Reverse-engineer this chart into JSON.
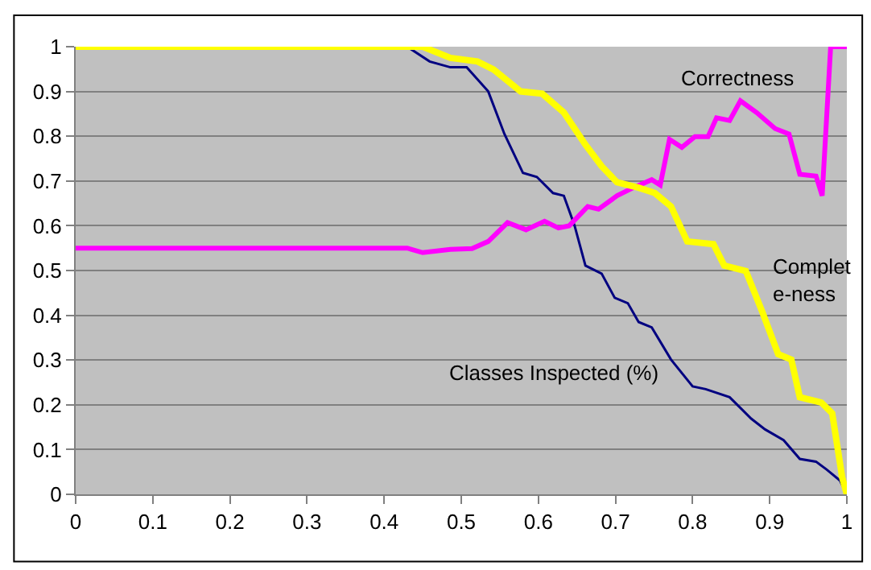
{
  "chart_data": {
    "type": "line",
    "xlim": [
      0,
      1
    ],
    "ylim": [
      0,
      1
    ],
    "xticks": [
      0,
      0.1,
      0.2,
      0.3,
      0.4,
      0.5,
      0.6,
      0.7,
      0.8,
      0.9,
      1
    ],
    "yticks": [
      0,
      0.1,
      0.2,
      0.3,
      0.4,
      0.5,
      0.6,
      0.7,
      0.8,
      0.9,
      1
    ],
    "grid": "y",
    "legend": false,
    "marker": "none",
    "line_style": "solid",
    "series": [
      {
        "name": "Classes Inspected (%)",
        "color": "#000080",
        "x": [
          0,
          0.43,
          0.459,
          0.486,
          0.507,
          0.535,
          0.556,
          0.58,
          0.598,
          0.619,
          0.633,
          0.647,
          0.661,
          0.682,
          0.699,
          0.716,
          0.73,
          0.747,
          0.772,
          0.8,
          0.817,
          0.848,
          0.876,
          0.894,
          0.918,
          0.939,
          0.96,
          0.974,
          0.991,
          1
        ],
        "values": [
          1,
          1,
          0.967,
          0.954,
          0.954,
          0.9,
          0.805,
          0.718,
          0.709,
          0.673,
          0.667,
          0.6,
          0.511,
          0.493,
          0.439,
          0.427,
          0.385,
          0.373,
          0.301,
          0.241,
          0.235,
          0.217,
          0.169,
          0.145,
          0.121,
          0.079,
          0.073,
          0.055,
          0.031,
          0
        ]
      },
      {
        "name": "Correctness",
        "color": "#ff00ff",
        "x": [
          0,
          0.43,
          0.45,
          0.486,
          0.514,
          0.535,
          0.56,
          0.584,
          0.608,
          0.626,
          0.64,
          0.664,
          0.678,
          0.702,
          0.723,
          0.747,
          0.758,
          0.77,
          0.786,
          0.803,
          0.82,
          0.831,
          0.848,
          0.862,
          0.883,
          0.907,
          0.925,
          0.939,
          0.96,
          0.968,
          0.979,
          1
        ],
        "values": [
          0.55,
          0.55,
          0.54,
          0.547,
          0.549,
          0.565,
          0.607,
          0.591,
          0.61,
          0.595,
          0.6,
          0.643,
          0.637,
          0.667,
          0.685,
          0.703,
          0.691,
          0.793,
          0.775,
          0.799,
          0.799,
          0.841,
          0.835,
          0.879,
          0.853,
          0.817,
          0.805,
          0.715,
          0.711,
          0.667,
          1,
          1
        ]
      },
      {
        "name": "Complet\ne-ness",
        "color": "#ffff00",
        "x": [
          0,
          0.45,
          0.486,
          0.521,
          0.542,
          0.577,
          0.605,
          0.633,
          0.661,
          0.682,
          0.702,
          0.73,
          0.751,
          0.772,
          0.793,
          0.827,
          0.841,
          0.869,
          0.89,
          0.911,
          0.928,
          0.939,
          0.967,
          0.981,
          0.994,
          1
        ],
        "values": [
          1,
          1,
          0.975,
          0.967,
          0.949,
          0.9,
          0.895,
          0.853,
          0.781,
          0.733,
          0.697,
          0.685,
          0.673,
          0.643,
          0.565,
          0.559,
          0.511,
          0.499,
          0.409,
          0.313,
          0.301,
          0.217,
          0.205,
          0.181,
          0.037,
          0
        ]
      }
    ]
  }
}
